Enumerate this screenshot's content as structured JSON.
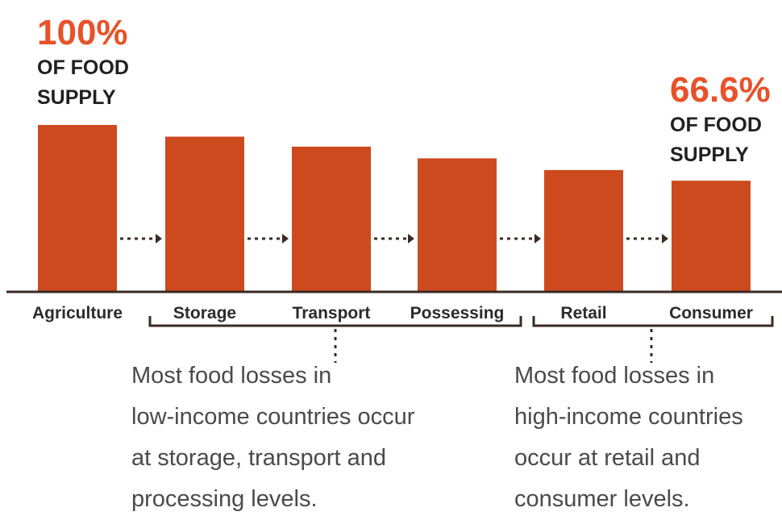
{
  "chart_data": {
    "type": "bar",
    "categories": [
      "Agriculture",
      "Storage",
      "Transport",
      "Possessing",
      "Retail",
      "Consumer"
    ],
    "values": [
      100,
      93,
      87,
      80,
      73,
      66.6
    ],
    "ylim": [
      0,
      100
    ],
    "annotations": [
      {
        "value_text": "100%",
        "lines": [
          "OF FOOD",
          "SUPPLY"
        ]
      },
      {
        "value_text": "66.6%",
        "lines": [
          "OF FOOD",
          "SUPPLY"
        ]
      }
    ],
    "notes": [
      {
        "lines": [
          "Most food losses in",
          "low-income countries occur",
          "at storage, transport and",
          "processing levels."
        ]
      },
      {
        "lines": [
          "Most food losses in",
          "high-income countries",
          "occur at retail and",
          "consumer levels."
        ]
      }
    ]
  },
  "colors": {
    "bar": "#cd4a1e",
    "accent": "#e8522a",
    "axis": "#3a2a24"
  }
}
